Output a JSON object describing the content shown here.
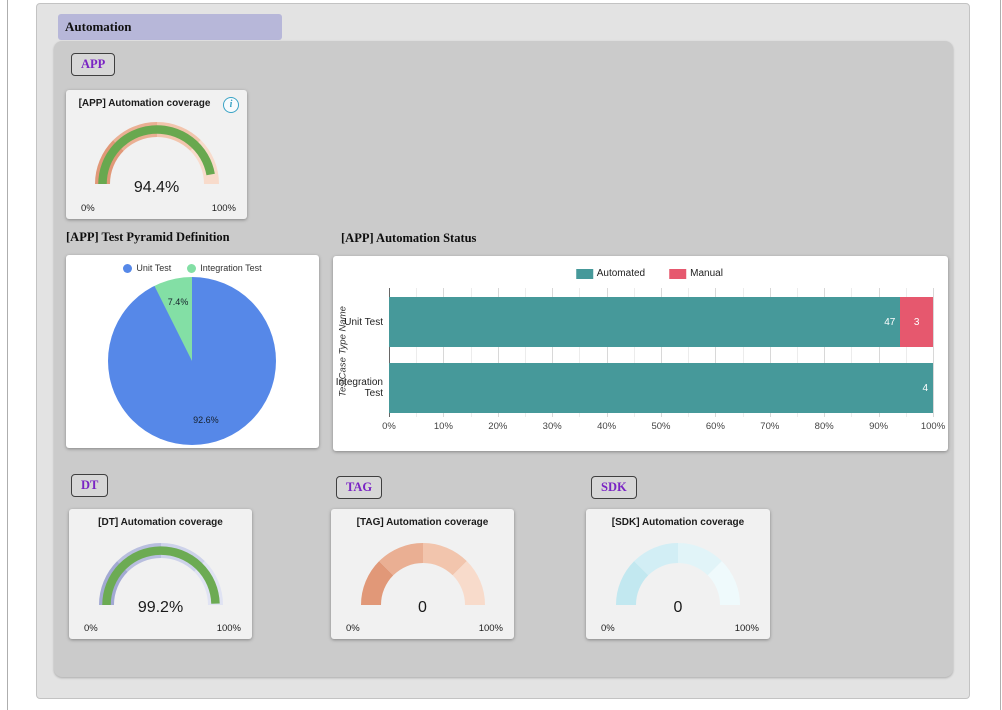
{
  "header": {
    "title": "Automation"
  },
  "chips": {
    "app": "APP",
    "dt": "DT",
    "tag": "TAG",
    "sdk": "SDK"
  },
  "section_headings": {
    "pyramid": "[APP] Test Pyramid Definition",
    "status": "[APP] Automation Status"
  },
  "icons": {
    "info": "i"
  },
  "chart_data": [
    {
      "type": "gauge",
      "name": "app-automation-coverage",
      "title": "[APP] Automation coverage",
      "value": 94.4,
      "display": "94.4%",
      "min_label": "0%",
      "max_label": "100%",
      "range": [
        0,
        100
      ],
      "track_colors": [
        "#e19878",
        "#eaaf93",
        "#f2c5ad",
        "#f8dbcb"
      ],
      "value_color": "#68a84f",
      "has_info_icon": true
    },
    {
      "type": "gauge",
      "name": "dt-automation-coverage",
      "title": "[DT] Automation coverage",
      "value": 99.2,
      "display": "99.2%",
      "min_label": "0%",
      "max_label": "100%",
      "range": [
        0,
        100
      ],
      "track_colors": [
        "#a2a9d3",
        "#b8bede",
        "#cdd2ea",
        "#e0e3f3"
      ],
      "value_color": "#6cab53",
      "has_info_icon": false
    },
    {
      "type": "gauge",
      "name": "tag-automation-coverage",
      "title": "[TAG] Automation coverage",
      "value": 0,
      "display": "0",
      "min_label": "0%",
      "max_label": "100%",
      "range": [
        0,
        100
      ],
      "track_colors": [
        "#e19878",
        "#eaaf93",
        "#f2c5ad",
        "#f8dbcb"
      ],
      "value_color": "#68a84f",
      "has_info_icon": false
    },
    {
      "type": "gauge",
      "name": "sdk-automation-coverage",
      "title": "[SDK] Automation coverage",
      "value": 0,
      "display": "0",
      "min_label": "0%",
      "max_label": "100%",
      "range": [
        0,
        100
      ],
      "track_colors": [
        "#c2e8f0",
        "#d2eef5",
        "#e1f4f8",
        "#effafc"
      ],
      "value_color": "#68a84f",
      "has_info_icon": false
    },
    {
      "type": "pie",
      "name": "app-test-pyramid",
      "title": "[APP] Test Pyramid Definition",
      "legend_position": "top",
      "slices": [
        {
          "label": "Unit Test",
          "value": 92.6,
          "display": "92.6%",
          "color": "#5688e8"
        },
        {
          "label": "Integration Test",
          "value": 7.4,
          "display": "7.4%",
          "color": "#83dfa5"
        }
      ]
    },
    {
      "type": "bar",
      "name": "app-automation-status",
      "title": "[APP] Automation Status",
      "orientation": "horizontal",
      "stacked": true,
      "categories": [
        "Unit Test",
        "Integration Test"
      ],
      "series": [
        {
          "name": "Automated",
          "color": "#46999a",
          "values": [
            47,
            4
          ]
        },
        {
          "name": "Manual",
          "color": "#e6586e",
          "values": [
            3,
            0
          ]
        }
      ],
      "x_ticks": [
        "0%",
        "10%",
        "20%",
        "30%",
        "40%",
        "50%",
        "60%",
        "70%",
        "80%",
        "90%",
        "100%"
      ],
      "x_range": [
        0,
        100
      ],
      "ylabel": "TestCase Type Name",
      "gridlines": {
        "major_every": 10,
        "minor_every": 5
      }
    }
  ]
}
